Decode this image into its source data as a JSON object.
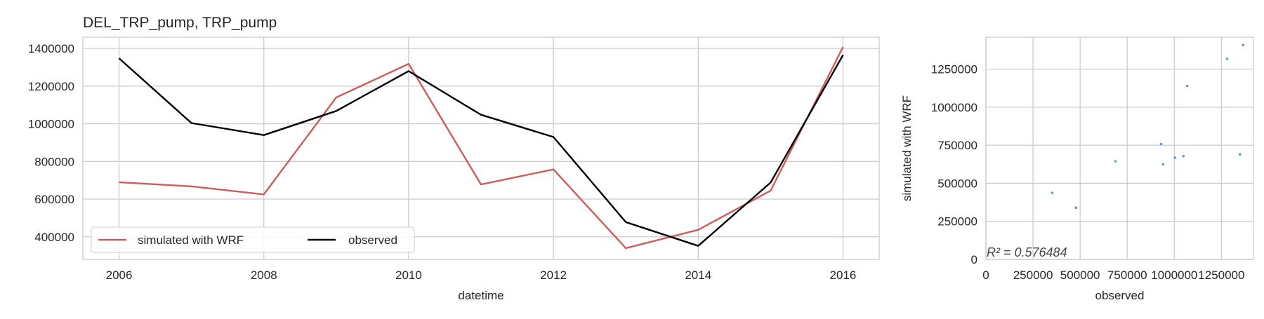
{
  "chart_data": [
    {
      "type": "line",
      "title": "DEL_TRP_pump, TRP_pump",
      "xlabel": "datetime",
      "ylabel": "",
      "x": [
        2006,
        2007,
        2008,
        2009,
        2010,
        2011,
        2012,
        2013,
        2014,
        2015,
        2016
      ],
      "x_ticks": [
        "2006",
        "2008",
        "2010",
        "2012",
        "2014",
        "2016"
      ],
      "y_ticks": [
        "400000",
        "600000",
        "800000",
        "1000000",
        "1200000",
        "1400000"
      ],
      "xlim": [
        2005.5,
        2016.5
      ],
      "ylim": [
        280000,
        1460000
      ],
      "grid": true,
      "legend": {
        "placement": "lower-left",
        "columns": 2
      },
      "series": [
        {
          "name": "simulated with WRF",
          "color": "#cd5c5c",
          "values": [
            690000,
            668000,
            625000,
            1140000,
            1318000,
            678000,
            758000,
            340000,
            437000,
            645000,
            1408000
          ]
        },
        {
          "name": "observed",
          "color": "#000000",
          "values": [
            1348000,
            1004000,
            940000,
            1068000,
            1280000,
            1048000,
            930000,
            478000,
            352000,
            688000,
            1365000
          ]
        }
      ]
    },
    {
      "type": "scatter",
      "title": "",
      "xlabel": "observed",
      "ylabel": "simulated with WRF",
      "x_ticks": [
        "0",
        "250000",
        "500000",
        "750000",
        "1000000",
        "1250000"
      ],
      "y_ticks": [
        "0",
        "250000",
        "500000",
        "750000",
        "1000000",
        "1250000"
      ],
      "xlim": [
        0,
        1420000
      ],
      "ylim": [
        0,
        1460000
      ],
      "grid": true,
      "point_color": "#5b9bd5",
      "annotation": "R² = 0.576484",
      "points": [
        {
          "x": 352000,
          "y": 437000
        },
        {
          "x": 478000,
          "y": 340000
        },
        {
          "x": 688000,
          "y": 645000
        },
        {
          "x": 930000,
          "y": 758000
        },
        {
          "x": 940000,
          "y": 625000
        },
        {
          "x": 1004000,
          "y": 668000
        },
        {
          "x": 1048000,
          "y": 678000
        },
        {
          "x": 1068000,
          "y": 1140000
        },
        {
          "x": 1280000,
          "y": 1318000
        },
        {
          "x": 1348000,
          "y": 690000
        },
        {
          "x": 1365000,
          "y": 1408000
        }
      ]
    }
  ]
}
